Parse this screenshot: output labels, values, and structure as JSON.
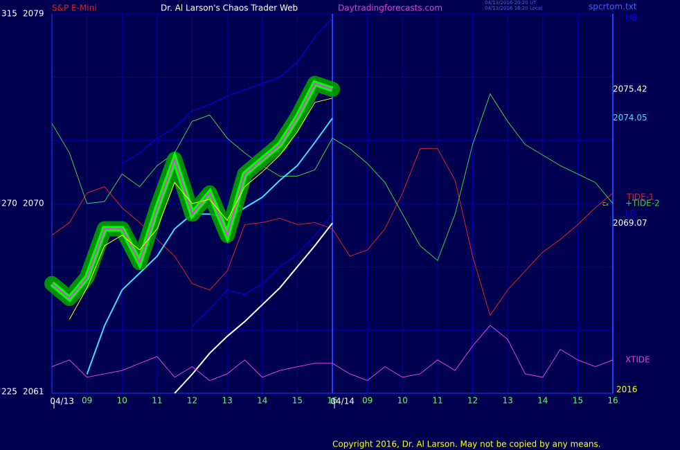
{
  "chart_data": {
    "type": "line",
    "instrument": "S&P E-Mini",
    "title": "Dr. Al Larson's Chaos Trader Web",
    "site": "Daytradingforecasts.com",
    "stamps": [
      "04/13/2016 20:20 UT",
      "04/13/2016 16:20 Local"
    ],
    "file": "spcrtom.txt",
    "year": "2016",
    "marker": "Cx",
    "copyright": "Copyright 2016, Dr. Al Larson. May not be copied by any means.",
    "dates": [
      "04/13",
      "04/14"
    ],
    "categories": [
      null,
      null,
      "09",
      null,
      "10",
      null,
      "11",
      null,
      "12",
      null,
      "13",
      null,
      "14",
      null,
      "15",
      null,
      "16",
      null,
      "09",
      null,
      "10",
      null,
      "11",
      null,
      "12",
      null,
      "13",
      null,
      "14",
      null,
      "15",
      null,
      "16"
    ],
    "ylim": [
      2061,
      2079
    ],
    "yticks": [
      2061,
      2070,
      2079
    ],
    "y2lim": [
      225,
      315
    ],
    "y2ticks": [
      225,
      270,
      315
    ],
    "grid_y": [
      2061,
      2064,
      2067,
      2070,
      2073,
      2076,
      2079
    ],
    "grid": true,
    "series": [
      {
        "name": "UB",
        "color": "#0000ff",
        "values": [
          null,
          null,
          null,
          null,
          2071.9,
          2072.4,
          2073.1,
          2073.6,
          2074.4,
          2074.7,
          2075.1,
          2075.4,
          2075.7,
          2076.0,
          2076.7,
          2077.9,
          2078.8,
          null,
          null,
          null,
          null,
          null,
          null,
          null,
          null,
          null,
          null,
          null,
          null,
          null,
          null,
          null,
          null
        ]
      },
      {
        "name": "LB",
        "color": "#0000ff",
        "values": [
          null,
          null,
          null,
          null,
          null,
          null,
          null,
          null,
          2064.2,
          2065.0,
          2065.9,
          2065.7,
          2066.2,
          2067.0,
          2067.6,
          2068.5,
          2069.5,
          null,
          null,
          null,
          null,
          null,
          null,
          null,
          null,
          null,
          null,
          null,
          null,
          null,
          null,
          null,
          null
        ]
      },
      {
        "name": "TIDE-1",
        "color": "#e02020",
        "values": [
          2068.5,
          2069.1,
          2070.5,
          2070.8,
          2069.8,
          2069.1,
          2068.3,
          2067.5,
          2066.2,
          2065.9,
          2066.8,
          2069.0,
          2069.1,
          2069.3,
          2069.0,
          2069.1,
          2068.8,
          2067.5,
          2067.8,
          2068.8,
          2070.5,
          2072.6,
          2072.6,
          2071.1,
          2067.5,
          2064.7,
          2065.9,
          2066.8,
          2067.7,
          2068.3,
          2069.0,
          2069.8,
          2070.5
        ]
      },
      {
        "name": "+TIDE-2",
        "color": "#40d040",
        "values": [
          2073.8,
          2072.4,
          2070.0,
          2070.1,
          2071.4,
          2070.8,
          2071.8,
          2072.4,
          2073.9,
          2074.2,
          2073.1,
          2072.4,
          2071.8,
          2071.3,
          2071.3,
          2071.6,
          2073.1,
          2072.6,
          2071.9,
          2071.0,
          2069.5,
          2068.0,
          2067.3,
          2069.5,
          2072.8,
          2075.2,
          2073.9,
          2072.8,
          2072.3,
          2071.8,
          2071.4,
          2071.0,
          2070.0
        ]
      },
      {
        "color": "#ffffff",
        "values": [
          null,
          null,
          null,
          null,
          null,
          null,
          null,
          2061.0,
          2061.9,
          2062.9,
          2063.7,
          2064.4,
          2065.2,
          2066.0,
          2067.0,
          2068.0,
          2069.07,
          null,
          null,
          null,
          null,
          null,
          null,
          null,
          null,
          null,
          null,
          null,
          null,
          null,
          null,
          null,
          null
        ],
        "value_labels": [
          null,
          null,
          null,
          null,
          null,
          null,
          null,
          null,
          null,
          null,
          null,
          null,
          null,
          null,
          null,
          null,
          "2069.07",
          null,
          null,
          null,
          null,
          null,
          null,
          null,
          null,
          null,
          null,
          null,
          null,
          null,
          null,
          null,
          null
        ]
      },
      {
        "color": "#40e0ff",
        "values": [
          null,
          null,
          2061.9,
          2064.2,
          2065.9,
          2066.7,
          2067.5,
          2068.8,
          2069.5,
          2069.5,
          2069.3,
          2069.8,
          2070.3,
          2071.1,
          2071.8,
          2072.9,
          2074.05,
          null,
          null,
          null,
          null,
          null,
          null,
          null,
          null,
          null,
          null,
          null,
          null,
          null,
          null,
          null,
          null
        ],
        "value_labels": [
          null,
          null,
          null,
          null,
          null,
          null,
          null,
          null,
          null,
          null,
          null,
          null,
          null,
          null,
          null,
          null,
          "2074.05",
          null,
          null,
          null,
          null,
          null,
          null,
          null,
          null,
          null,
          null,
          null,
          null,
          null,
          null,
          null,
          null
        ]
      },
      {
        "color": "#00ff00",
        "values": [
          2066.2,
          2065.5,
          2066.5,
          2068.8,
          2068.8,
          2067.2,
          2069.8,
          2072.1,
          2069.5,
          2070.5,
          2068.5,
          2071.4,
          2072.1,
          2072.8,
          2074.1,
          2075.7,
          2075.42,
          null,
          null,
          null,
          null,
          null,
          null,
          null,
          null,
          null,
          null,
          null,
          null,
          null,
          null,
          null,
          null
        ],
        "value_labels": [
          null,
          null,
          null,
          null,
          null,
          null,
          null,
          null,
          null,
          null,
          null,
          null,
          null,
          null,
          null,
          null,
          "2075.42",
          null,
          null,
          null,
          null,
          null,
          null,
          null,
          null,
          null,
          null,
          null,
          null,
          null,
          null,
          null,
          null
        ]
      },
      {
        "color": "#ffff00",
        "values": [
          null,
          2064.5,
          2066.0,
          2068.0,
          2068.5,
          2067.8,
          2068.8,
          2071.0,
          2070.0,
          2070.2,
          2069.2,
          2070.8,
          2071.5,
          2072.3,
          2073.4,
          2074.8,
          2075.0,
          null,
          null,
          null,
          null,
          null,
          null,
          null,
          null,
          null,
          null,
          null,
          null,
          null,
          null,
          null,
          null
        ]
      },
      {
        "name": "XTIDE",
        "color": "#e040e0",
        "axis": "y2",
        "values": [
          231.3,
          232.9,
          228.8,
          229.6,
          230.4,
          232.1,
          233.7,
          228.8,
          231.3,
          228.0,
          229.6,
          232.9,
          228.8,
          230.4,
          231.3,
          232.1,
          232.1,
          229.6,
          228.0,
          231.3,
          228.8,
          229.6,
          232.9,
          230.4,
          236.2,
          241.1,
          237.8,
          229.6,
          228.8,
          235.4,
          232.9,
          231.3,
          232.9
        ]
      }
    ]
  }
}
